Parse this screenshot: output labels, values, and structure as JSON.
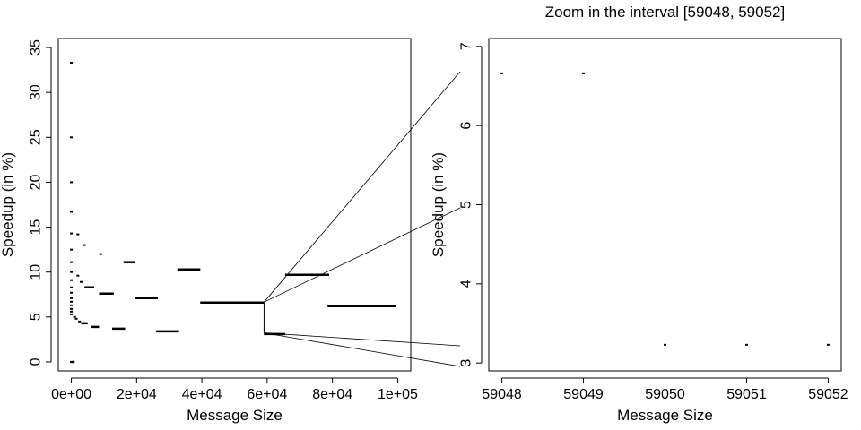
{
  "chart_data": [
    {
      "type": "scatter",
      "title": "",
      "xlabel": "Message Size",
      "ylabel": "Speedup (in %)",
      "xlim": [
        -4000,
        104000
      ],
      "ylim": [
        -1,
        36
      ],
      "xticks": [
        0,
        20000,
        40000,
        60000,
        80000,
        100000
      ],
      "xtick_labels": [
        "0e+00",
        "2e+04",
        "4e+04",
        "6e+04",
        "8e+04",
        "1e+05"
      ],
      "yticks": [
        0,
        5,
        10,
        15,
        20,
        25,
        30,
        35
      ],
      "ytick_labels": [
        "0",
        "5",
        "10",
        "15",
        "20",
        "25",
        "30",
        "35"
      ],
      "grid": false,
      "marker": "dash",
      "points": [
        [
          0,
          33.3
        ],
        [
          0,
          25
        ],
        [
          0,
          20
        ],
        [
          0,
          16.7
        ],
        [
          0,
          14.3
        ],
        [
          0,
          12.5
        ],
        [
          0,
          11.1
        ],
        [
          0,
          10
        ],
        [
          0,
          9.1
        ],
        [
          0,
          8.3
        ],
        [
          0,
          7.7
        ],
        [
          0,
          7.1
        ],
        [
          0,
          6.7
        ],
        [
          0,
          6.3
        ],
        [
          0,
          5.9
        ],
        [
          0,
          5.6
        ],
        [
          0,
          5.3
        ],
        [
          0,
          0
        ],
        [
          1000,
          5.0
        ],
        [
          1500,
          4.8
        ],
        [
          2000,
          9.6
        ],
        [
          2000,
          14.2
        ],
        [
          2500,
          4.5
        ],
        [
          3000,
          8.9
        ],
        [
          4000,
          13.0
        ],
        [
          9000,
          12.0
        ]
      ],
      "segments": [
        {
          "x0": 0,
          "x1": 1000,
          "y": 0
        },
        {
          "x0": 3000,
          "x1": 5000,
          "y": 4.3
        },
        {
          "x0": 4000,
          "x1": 7000,
          "y": 8.3
        },
        {
          "x0": 6000,
          "x1": 8500,
          "y": 3.9
        },
        {
          "x0": 8500,
          "x1": 13000,
          "y": 7.6
        },
        {
          "x0": 12500,
          "x1": 16500,
          "y": 3.7
        },
        {
          "x0": 16000,
          "x1": 19500,
          "y": 11.1
        },
        {
          "x0": 19500,
          "x1": 26500,
          "y": 7.1
        },
        {
          "x0": 26000,
          "x1": 33000,
          "y": 3.4
        },
        {
          "x0": 32500,
          "x1": 39500,
          "y": 10.3
        },
        {
          "x0": 39500,
          "x1": 59000,
          "y": 6.6
        },
        {
          "x0": 59000,
          "x1": 65500,
          "y": 3.1
        },
        {
          "x0": 65500,
          "x1": 79000,
          "y": 9.7
        },
        {
          "x0": 78500,
          "x1": 99500,
          "y": 6.2
        }
      ]
    },
    {
      "type": "scatter",
      "title": "Zoom in the interval [59048, 59052]",
      "xlabel": "Message Size",
      "ylabel": "Speedup (in %)",
      "xlim": [
        59047.84,
        59052.16
      ],
      "ylim": [
        2.9,
        7.1
      ],
      "xticks": [
        59048,
        59049,
        59050,
        59051,
        59052
      ],
      "xtick_labels": [
        "59048",
        "59049",
        "59050",
        "59051",
        "59052"
      ],
      "yticks": [
        3,
        4,
        5,
        6,
        7
      ],
      "ytick_labels": [
        "3",
        "4",
        "5",
        "6",
        "7"
      ],
      "grid": false,
      "marker": "dash",
      "points": [
        [
          59048,
          6.66
        ],
        [
          59049,
          6.66
        ],
        [
          59050,
          3.23
        ],
        [
          59051,
          3.23
        ],
        [
          59052,
          3.23
        ]
      ]
    }
  ]
}
